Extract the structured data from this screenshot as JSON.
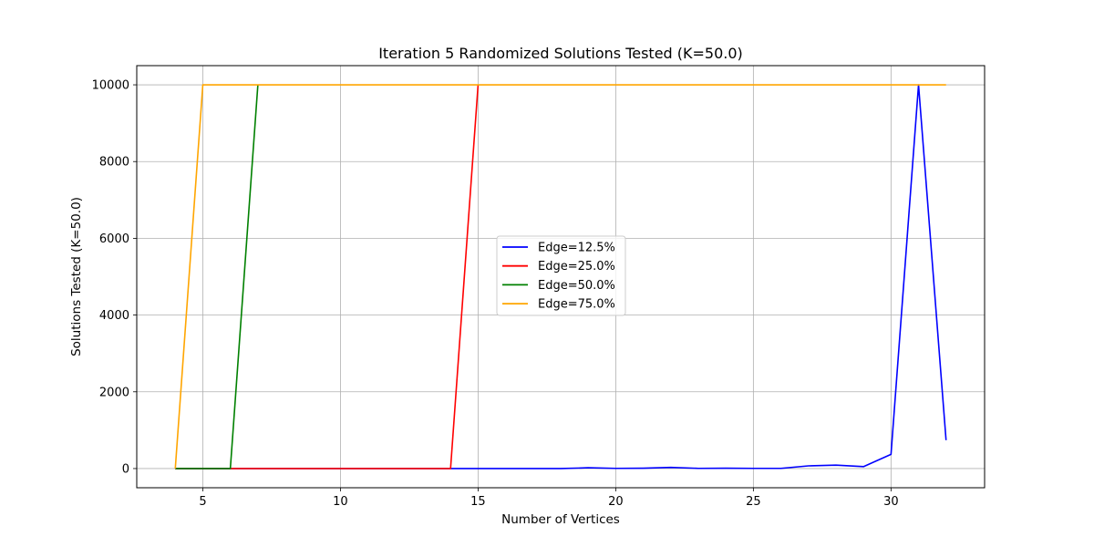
{
  "chart_data": {
    "type": "line",
    "title": "Iteration 5 Randomized Solutions Tested (K=50.0)",
    "xlabel": "Number of Vertices",
    "ylabel": "Solutions Tested (K=50.0)",
    "xlim": [
      2.6,
      33.4
    ],
    "ylim": [
      -500,
      10500
    ],
    "xticks": [
      5,
      10,
      15,
      20,
      25,
      30
    ],
    "yticks": [
      0,
      2000,
      4000,
      6000,
      8000,
      10000
    ],
    "grid": true,
    "legend_position": "center",
    "series": [
      {
        "name": "Edge=12.5%",
        "color": "#0000ff",
        "x": [
          4,
          5,
          6,
          7,
          8,
          9,
          10,
          11,
          12,
          13,
          14,
          15,
          16,
          17,
          18,
          19,
          20,
          21,
          22,
          23,
          24,
          25,
          26,
          27,
          28,
          29,
          30,
          31,
          32
        ],
        "y": [
          0,
          0,
          0,
          0,
          0,
          0,
          0,
          0,
          0,
          0,
          0,
          0,
          0,
          0,
          0,
          20,
          5,
          10,
          30,
          5,
          10,
          5,
          5,
          70,
          90,
          50,
          370,
          10000,
          740
        ]
      },
      {
        "name": "Edge=25.0%",
        "color": "#ff0000",
        "x": [
          4,
          5,
          6,
          7,
          8,
          9,
          10,
          11,
          12,
          13,
          14,
          15
        ],
        "y": [
          0,
          0,
          0,
          0,
          0,
          0,
          0,
          0,
          0,
          0,
          0,
          10000
        ]
      },
      {
        "name": "Edge=50.0%",
        "color": "#008000",
        "x": [
          4,
          5,
          6,
          7
        ],
        "y": [
          0,
          0,
          0,
          10000
        ]
      },
      {
        "name": "Edge=75.0%",
        "color": "#ffa500",
        "x": [
          4,
          5,
          6,
          7,
          8,
          9,
          10,
          11,
          12,
          13,
          14,
          15,
          16,
          17,
          18,
          19,
          20,
          21,
          22,
          23,
          24,
          25,
          26,
          27,
          28,
          29,
          30,
          31,
          32
        ],
        "y": [
          0,
          10000,
          10000,
          10000,
          10000,
          10000,
          10000,
          10000,
          10000,
          10000,
          10000,
          10000,
          10000,
          10000,
          10000,
          10000,
          10000,
          10000,
          10000,
          10000,
          10000,
          10000,
          10000,
          10000,
          10000,
          10000,
          10000,
          10000,
          10000
        ]
      }
    ]
  }
}
